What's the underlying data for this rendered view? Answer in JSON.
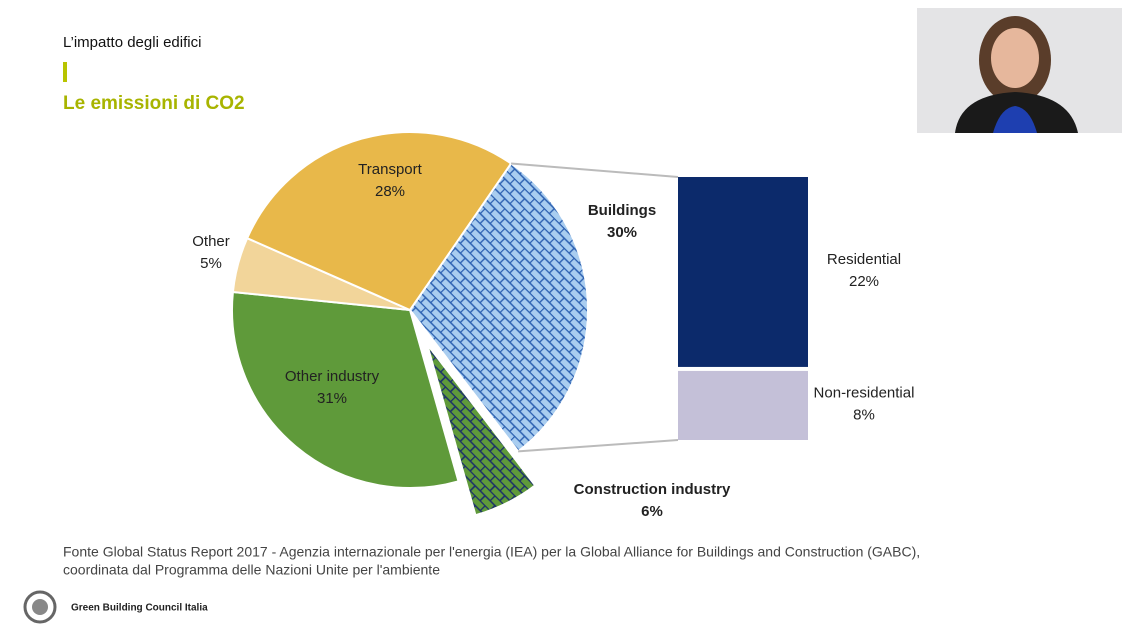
{
  "header": {
    "kicker": "L’impatto degli edifici",
    "title": "Le emissioni di CO2"
  },
  "chart_data": {
    "type": "pie",
    "categories": [
      "Buildings",
      "Construction industry",
      "Other industry",
      "Other",
      "Transport"
    ],
    "values": [
      30,
      6,
      31,
      5,
      28
    ],
    "value_labels": [
      "30%",
      "6%",
      "31%",
      "5%",
      "28%"
    ],
    "colors": [
      "#a9cdf0",
      "#5f9a3a",
      "#5f9a3a",
      "#f2d59a",
      "#e8b84a"
    ],
    "breakdown": {
      "categories": [
        "Residential",
        "Non-residential"
      ],
      "values": [
        22,
        8
      ],
      "value_labels": [
        "22%",
        "8%"
      ],
      "colors": [
        "#0c2a6b",
        "#c4c0d8"
      ]
    }
  },
  "source": {
    "lines": [
      "Fonte Global Status Report 2017 - Agenzia internazionale per l'energia (IEA) per la Global Alliance for Buildings and Construction (GABC),",
      "coordinata dal Programma delle Nazioni Unite per l'ambiente"
    ]
  },
  "footer": {
    "organization": "Green Building Council Italia"
  }
}
